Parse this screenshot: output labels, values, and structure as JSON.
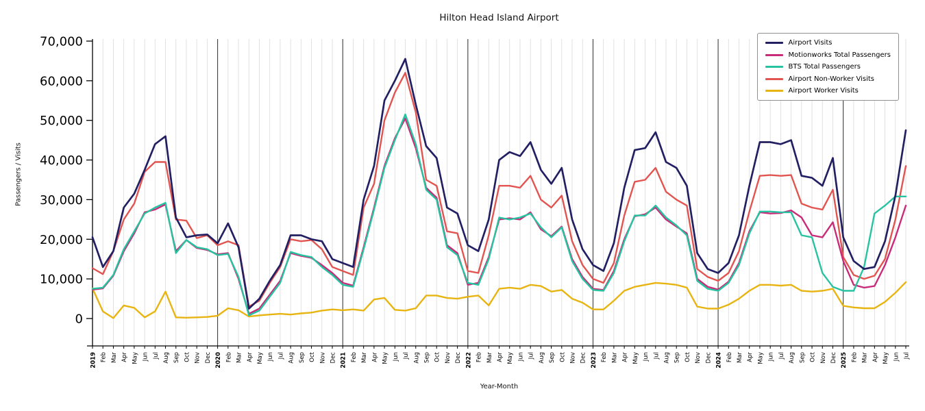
{
  "chart_data": {
    "type": "line",
    "title": "Hilton Head Island Airport",
    "xlabel": "Year-Month",
    "ylabel": "Passengers / Visits",
    "ylim": [
      0,
      70000
    ],
    "yticks": [
      0,
      10000,
      20000,
      30000,
      40000,
      50000,
      60000,
      70000
    ],
    "grid": "vertical gridline at every month, darker vertical line at each year boundary",
    "legend_position": "upper right",
    "x": [
      "2019",
      "Feb",
      "Mar",
      "Apr",
      "May",
      "Jun",
      "Jul",
      "Aug",
      "Sep",
      "Oct",
      "Nov",
      "Dec",
      "2020",
      "Feb",
      "Mar",
      "Apr",
      "May",
      "Jun",
      "Jul",
      "Aug",
      "Sep",
      "Oct",
      "Nov",
      "Dec",
      "2021",
      "Feb",
      "Mar",
      "Apr",
      "May",
      "Jun",
      "Jul",
      "Aug",
      "Sep",
      "Oct",
      "Nov",
      "Dec",
      "2022",
      "Feb",
      "Mar",
      "Apr",
      "May",
      "Jun",
      "Jul",
      "Aug",
      "Sep",
      "Oct",
      "Nov",
      "Dec",
      "2023",
      "Feb",
      "Mar",
      "Apr",
      "May",
      "Jun",
      "Jul",
      "Aug",
      "Sep",
      "Oct",
      "Nov",
      "Dec",
      "2024",
      "Feb",
      "Mar",
      "Apr",
      "May",
      "Jun",
      "Jul",
      "Aug",
      "Sep",
      "Oct",
      "Nov",
      "Dec",
      "2025",
      "Feb",
      "Mar",
      "Apr",
      "May",
      "Jun",
      "Jul"
    ],
    "year_boundaries_at": [
      12,
      24,
      36,
      48,
      60,
      72
    ],
    "series": [
      {
        "name": "Airport Visits",
        "color": "#221f63",
        "values": [
          20500,
          13000,
          17000,
          28000,
          31500,
          37500,
          44000,
          46000,
          25500,
          20500,
          21000,
          21200,
          19000,
          24000,
          18000,
          2500,
          5000,
          9500,
          13500,
          21000,
          21000,
          20000,
          19500,
          15000,
          14000,
          13000,
          30000,
          38500,
          55000,
          60000,
          65500,
          54000,
          43500,
          40500,
          28000,
          26500,
          18500,
          17000,
          25000,
          40000,
          42000,
          41000,
          44500,
          37500,
          34000,
          38000,
          25000,
          17500,
          13500,
          12000,
          19000,
          33000,
          42500,
          43000,
          47000,
          39500,
          38000,
          33500,
          16500,
          12500,
          11500,
          14000,
          21000,
          33500,
          44500,
          44500,
          44000,
          45000,
          36000,
          35500,
          33500,
          40500,
          20500,
          14500,
          12500,
          13000,
          19500,
          31000,
          47500
        ]
      },
      {
        "name": "Motionworks Total Passengers",
        "color": "#c72b79",
        "values": [
          7300,
          7600,
          10800,
          17000,
          21500,
          26800,
          27500,
          28800,
          17000,
          19800,
          17800,
          17300,
          16200,
          16500,
          10000,
          1200,
          2500,
          6000,
          9500,
          16500,
          15800,
          15300,
          13500,
          11500,
          9000,
          8300,
          18000,
          28000,
          38500,
          45500,
          50500,
          43000,
          33000,
          30500,
          18500,
          16500,
          8500,
          9000,
          15500,
          25000,
          25300,
          25000,
          26800,
          22500,
          20800,
          23200,
          15000,
          10500,
          7500,
          7200,
          12000,
          20000,
          25800,
          26300,
          28000,
          25000,
          23200,
          21500,
          10000,
          8000,
          7300,
          9300,
          14000,
          22000,
          26800,
          26500,
          26600,
          27300,
          25500,
          21000,
          20500,
          24300,
          14500,
          8500,
          7800,
          8200,
          13500,
          20500,
          28500
        ]
      },
      {
        "name": "BTS Total Passengers",
        "color": "#27c3a1",
        "values": [
          7500,
          7800,
          11000,
          17500,
          22000,
          26500,
          28000,
          29200,
          16500,
          19800,
          18000,
          17500,
          16000,
          16300,
          10500,
          800,
          2000,
          5500,
          9000,
          16800,
          16000,
          15500,
          13000,
          11000,
          8500,
          8000,
          17500,
          27500,
          38000,
          45000,
          51500,
          44000,
          32500,
          30000,
          18000,
          16000,
          9000,
          8500,
          15000,
          25500,
          25000,
          25500,
          26500,
          23000,
          20500,
          23000,
          14500,
          10000,
          7200,
          7000,
          11500,
          19500,
          26000,
          26000,
          28500,
          25500,
          23500,
          21000,
          9500,
          7500,
          7000,
          9000,
          13500,
          21500,
          27000,
          27000,
          26800,
          26800,
          21000,
          20500,
          11500,
          8000,
          7000,
          7000,
          13000,
          26500,
          28500,
          30800,
          30800
        ]
      },
      {
        "name": "Airport Non-Worker Visits",
        "color": "#e15450",
        "values": [
          12700,
          11200,
          17000,
          25000,
          29000,
          37000,
          39500,
          39500,
          25000,
          24700,
          20300,
          21000,
          18500,
          19500,
          18500,
          3000,
          4500,
          9000,
          13000,
          20000,
          19500,
          19800,
          17500,
          13000,
          12000,
          11000,
          28000,
          34000,
          50000,
          57000,
          62000,
          52000,
          35000,
          33500,
          22000,
          21500,
          12000,
          11500,
          21000,
          33500,
          33500,
          33000,
          36000,
          30000,
          28000,
          31000,
          19500,
          13500,
          10000,
          9000,
          14000,
          26000,
          34500,
          35000,
          38000,
          32000,
          30000,
          28500,
          12500,
          10500,
          9500,
          11500,
          17000,
          27000,
          36000,
          36200,
          36000,
          36200,
          29000,
          28000,
          27500,
          32500,
          15500,
          11000,
          10000,
          10800,
          15000,
          25000,
          38500
        ]
      },
      {
        "name": "Airport Worker Visits",
        "color": "#e7b411",
        "values": [
          7600,
          1800,
          100,
          3300,
          2700,
          300,
          1800,
          6800,
          300,
          200,
          300,
          400,
          700,
          2600,
          2100,
          500,
          800,
          1000,
          1200,
          1000,
          1300,
          1500,
          2000,
          2300,
          2100,
          2300,
          2000,
          4800,
          5200,
          2200,
          2000,
          2600,
          5800,
          5800,
          5200,
          5000,
          5500,
          5800,
          3300,
          7500,
          7800,
          7500,
          8500,
          8200,
          6800,
          7200,
          5000,
          4000,
          2300,
          2300,
          4500,
          7000,
          8000,
          8500,
          9000,
          8800,
          8500,
          7800,
          3000,
          2500,
          2500,
          3500,
          5000,
          7000,
          8500,
          8500,
          8300,
          8500,
          7000,
          6800,
          7000,
          7500,
          3200,
          2800,
          2600,
          2600,
          4200,
          6500,
          9200
        ]
      }
    ]
  }
}
